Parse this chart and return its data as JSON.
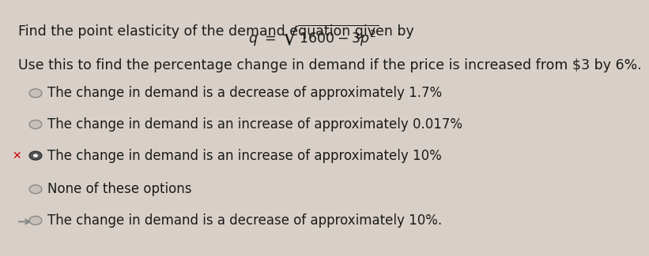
{
  "background_color": "#d8d0c8",
  "title_line1": "Find the point elasticity of the demand equation given by",
  "equation": "q = \\sqrt{1600 - 3p^2}",
  "title_line2": "Use this to find the percentage change in demand if the price is increased from $3 by 6%.",
  "options": [
    {
      "text": "The change in demand is a decrease of approximately 1.7%",
      "marker": "circle",
      "selected": false,
      "wrong": false,
      "arrow": false
    },
    {
      "text": "The change in demand is an increase of approximately 0.017%",
      "marker": "circle",
      "selected": false,
      "wrong": false,
      "arrow": false
    },
    {
      "text": "The change in demand is an increase of approximately 10%",
      "marker": "circle_filled",
      "selected": true,
      "wrong": true,
      "arrow": false
    },
    {
      "text": "None of these options",
      "marker": "circle",
      "selected": false,
      "wrong": false,
      "arrow": false
    },
    {
      "text": "The change in demand is a decrease of approximately 10%.",
      "marker": "circle",
      "selected": false,
      "wrong": false,
      "arrow": true
    }
  ],
  "text_color": "#1a1a1a",
  "circle_color": "#888888",
  "selected_circle_color": "#555555",
  "wrong_x_color": "#cc0000",
  "arrow_color": "#888888",
  "font_size_title": 12.5,
  "font_size_options": 12.0
}
